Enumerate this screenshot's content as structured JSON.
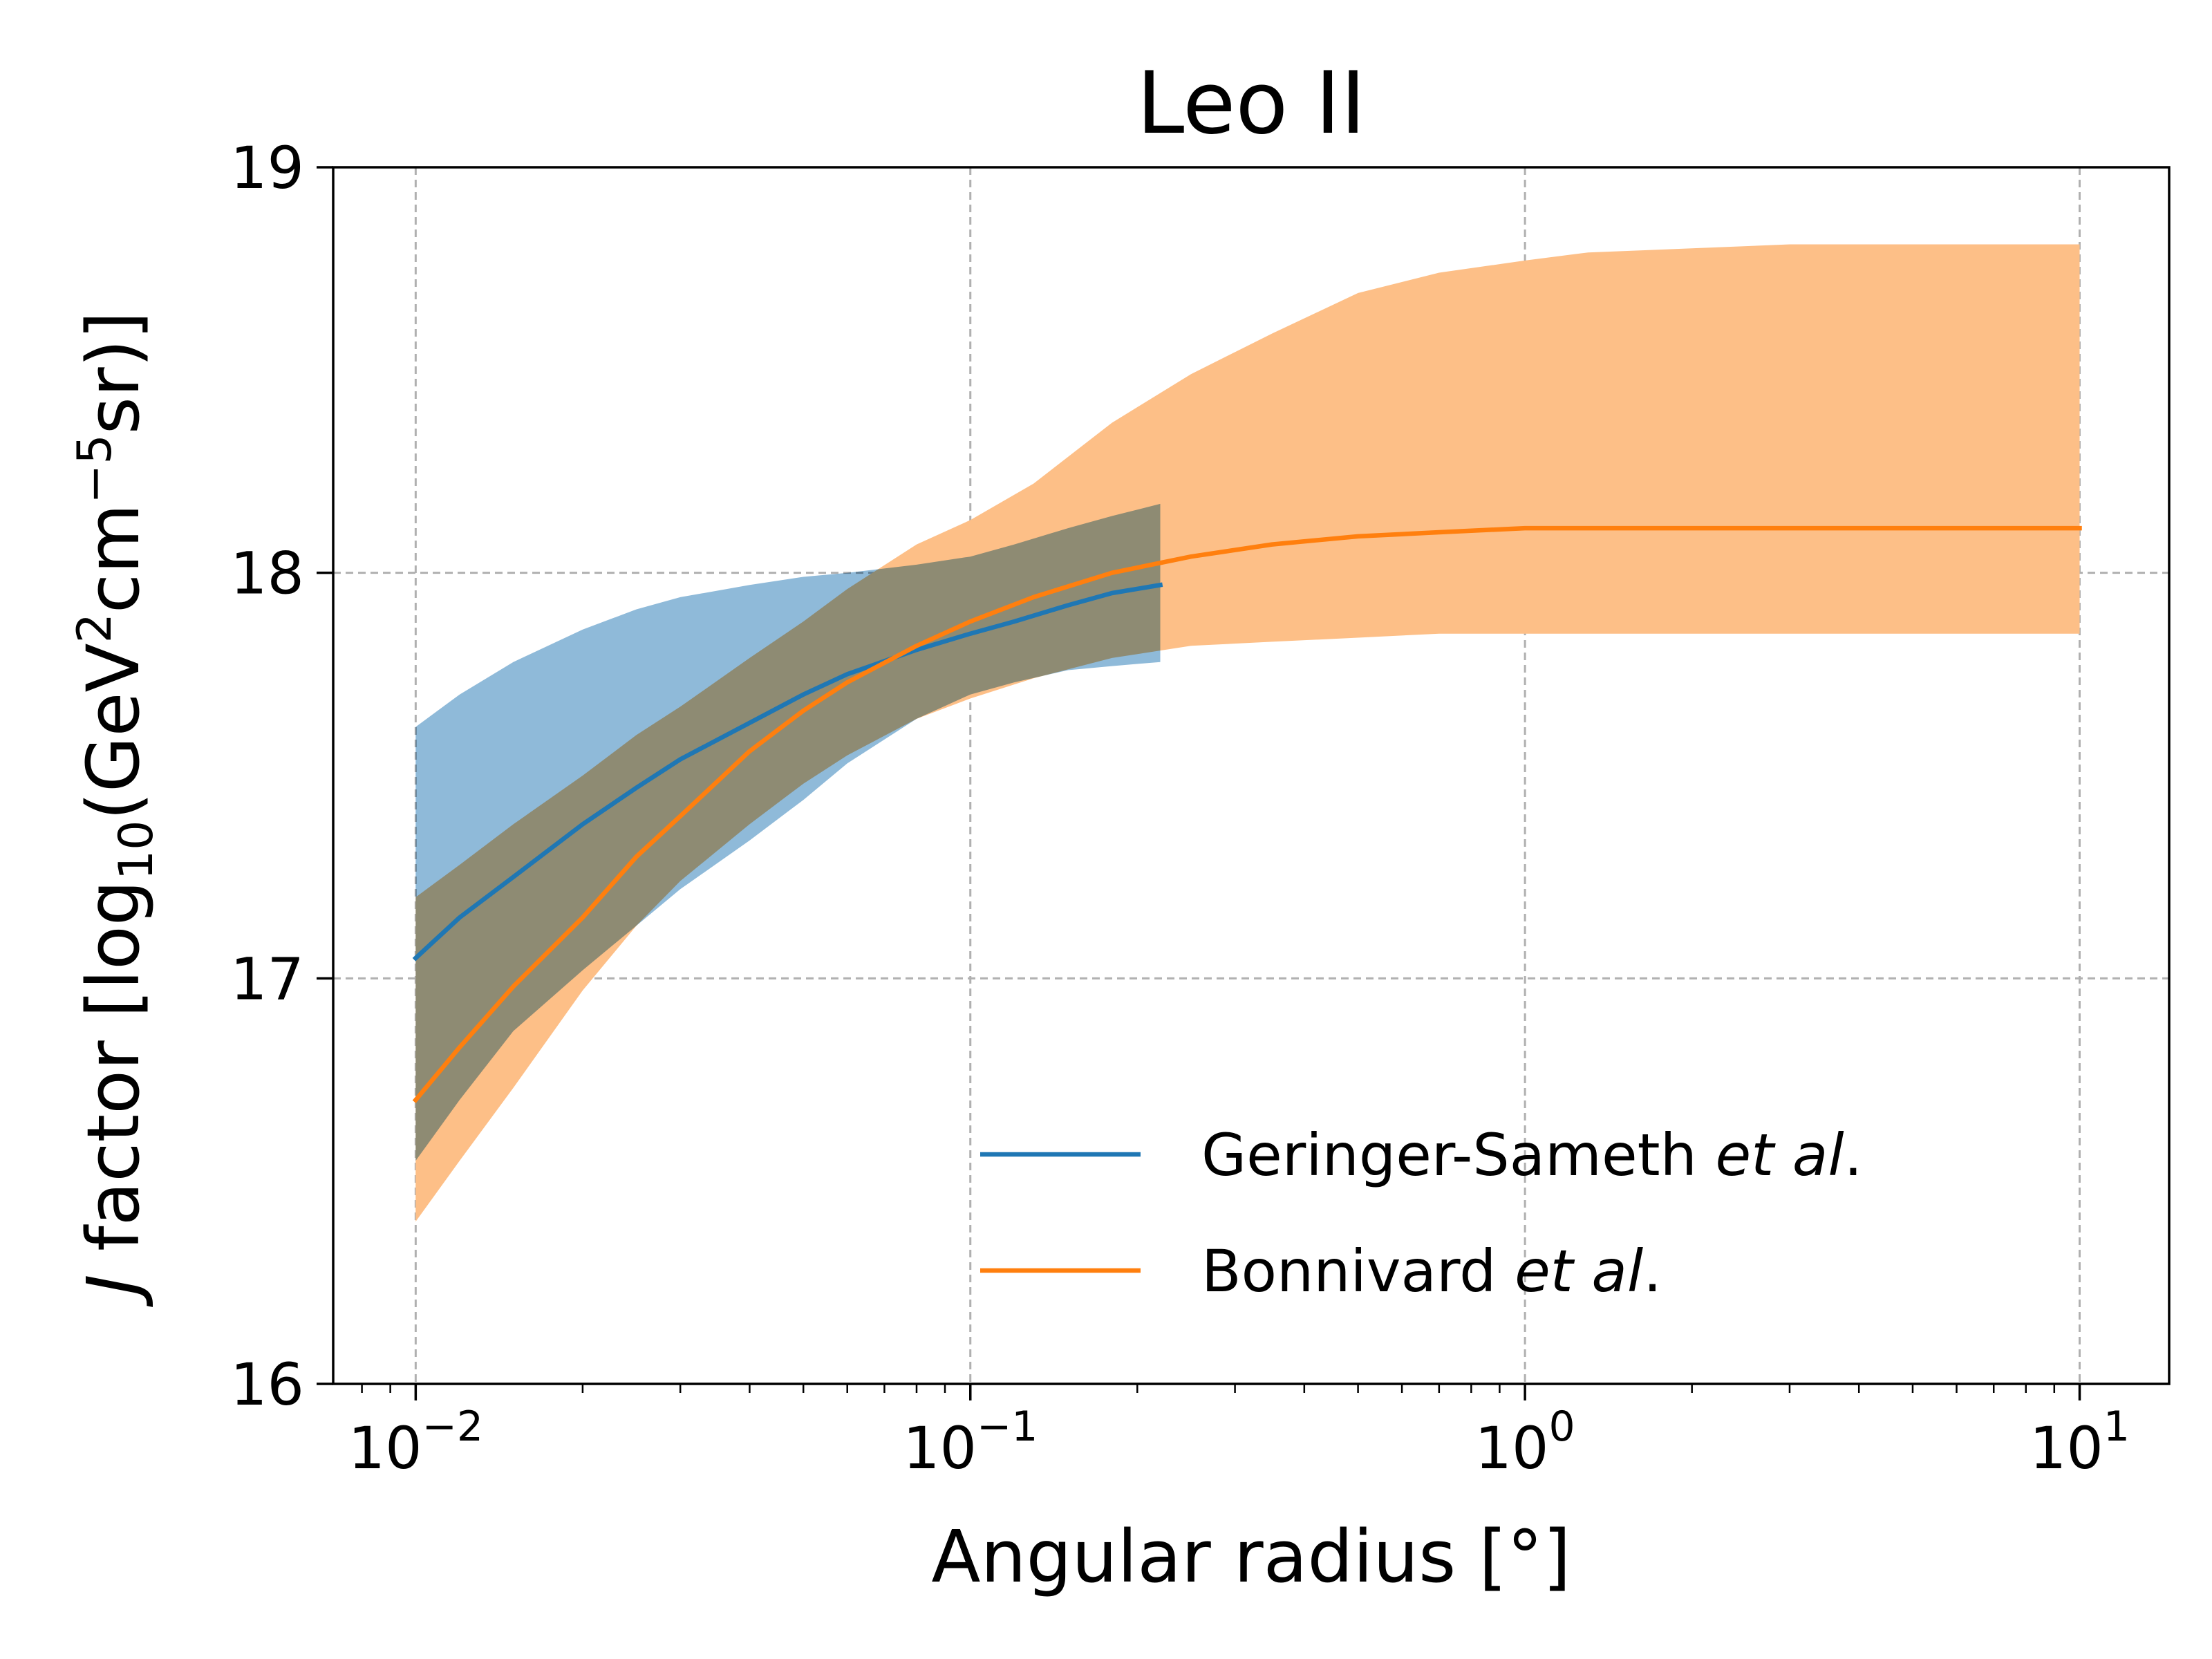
{
  "chart_data": {
    "type": "line",
    "title": "Leo II",
    "xlabel": "Angular radius [°]",
    "ylabel": {
      "italic": "J",
      "main": " factor [log",
      "sub": "10",
      "unit1": "(GeV",
      "sup1": "2",
      "unit2": "cm",
      "sup2": "−5",
      "unit3": "sr)]"
    },
    "x_scale": "log",
    "xlim": [
      0.0071,
      14.5
    ],
    "ylim": [
      16,
      19
    ],
    "grid": true,
    "x_ticks": [
      {
        "value": 0.01,
        "base": "10",
        "exp": "−2"
      },
      {
        "value": 0.1,
        "base": "10",
        "exp": "−1"
      },
      {
        "value": 1,
        "base": "10",
        "exp": "0"
      },
      {
        "value": 10,
        "base": "10",
        "exp": "1"
      }
    ],
    "y_ticks": [
      {
        "value": 16,
        "label": "16"
      },
      {
        "value": 17,
        "label": "17"
      },
      {
        "value": 18,
        "label": "18"
      },
      {
        "value": 19,
        "label": "19"
      }
    ],
    "legend_position": "lower-right",
    "series": [
      {
        "name": "Geringer-Sameth",
        "name_italic": "et al",
        "name_suffix": ".",
        "color": "#1f77b4",
        "band_color": "#8fbad9",
        "points": [
          {
            "x": 0.01,
            "y": 17.05,
            "lo": 16.55,
            "hi": 17.62
          },
          {
            "x": 0.012,
            "y": 17.15,
            "lo": 16.7,
            "hi": 17.7
          },
          {
            "x": 0.015,
            "y": 17.25,
            "lo": 16.87,
            "hi": 17.78
          },
          {
            "x": 0.02,
            "y": 17.38,
            "lo": 17.02,
            "hi": 17.86
          },
          {
            "x": 0.025,
            "y": 17.47,
            "lo": 17.13,
            "hi": 17.91
          },
          {
            "x": 0.03,
            "y": 17.54,
            "lo": 17.22,
            "hi": 17.94
          },
          {
            "x": 0.04,
            "y": 17.63,
            "lo": 17.34,
            "hi": 17.97
          },
          {
            "x": 0.05,
            "y": 17.7,
            "lo": 17.44,
            "hi": 17.99
          },
          {
            "x": 0.06,
            "y": 17.75,
            "lo": 17.53,
            "hi": 18.0
          },
          {
            "x": 0.08,
            "y": 17.81,
            "lo": 17.64,
            "hi": 18.02
          },
          {
            "x": 0.1,
            "y": 17.85,
            "lo": 17.7,
            "hi": 18.04
          },
          {
            "x": 0.12,
            "y": 17.88,
            "lo": 17.73,
            "hi": 18.07
          },
          {
            "x": 0.15,
            "y": 17.92,
            "lo": 17.76,
            "hi": 18.11
          },
          {
            "x": 0.18,
            "y": 17.95,
            "lo": 17.77,
            "hi": 18.14
          },
          {
            "x": 0.22,
            "y": 17.97,
            "lo": 17.78,
            "hi": 18.17
          }
        ]
      },
      {
        "name": "Bonnivard",
        "name_italic": "et al",
        "name_suffix": ".",
        "color": "#ff7f0e",
        "band_color": "#fdbf87",
        "points": [
          {
            "x": 0.01,
            "y": 16.7,
            "lo": 16.4,
            "hi": 17.2
          },
          {
            "x": 0.012,
            "y": 16.83,
            "lo": 16.55,
            "hi": 17.28
          },
          {
            "x": 0.015,
            "y": 16.98,
            "lo": 16.73,
            "hi": 17.38
          },
          {
            "x": 0.02,
            "y": 17.15,
            "lo": 16.97,
            "hi": 17.5
          },
          {
            "x": 0.025,
            "y": 17.3,
            "lo": 17.13,
            "hi": 17.6
          },
          {
            "x": 0.03,
            "y": 17.4,
            "lo": 17.24,
            "hi": 17.67
          },
          {
            "x": 0.04,
            "y": 17.56,
            "lo": 17.38,
            "hi": 17.79
          },
          {
            "x": 0.05,
            "y": 17.66,
            "lo": 17.48,
            "hi": 17.88
          },
          {
            "x": 0.06,
            "y": 17.73,
            "lo": 17.55,
            "hi": 17.96
          },
          {
            "x": 0.08,
            "y": 17.82,
            "lo": 17.64,
            "hi": 18.07
          },
          {
            "x": 0.1,
            "y": 17.88,
            "lo": 17.69,
            "hi": 18.13
          },
          {
            "x": 0.13,
            "y": 17.94,
            "lo": 17.74,
            "hi": 18.22
          },
          {
            "x": 0.18,
            "y": 18.0,
            "lo": 17.79,
            "hi": 18.37
          },
          {
            "x": 0.25,
            "y": 18.04,
            "lo": 17.82,
            "hi": 18.49
          },
          {
            "x": 0.35,
            "y": 18.07,
            "lo": 17.83,
            "hi": 18.59
          },
          {
            "x": 0.5,
            "y": 18.09,
            "lo": 17.84,
            "hi": 18.69
          },
          {
            "x": 0.7,
            "y": 18.1,
            "lo": 17.85,
            "hi": 18.74
          },
          {
            "x": 1.0,
            "y": 18.11,
            "lo": 17.85,
            "hi": 18.77
          },
          {
            "x": 1.3,
            "y": 18.11,
            "lo": 17.85,
            "hi": 18.79
          },
          {
            "x": 2.0,
            "y": 18.11,
            "lo": 17.85,
            "hi": 18.8
          },
          {
            "x": 3.0,
            "y": 18.11,
            "lo": 17.85,
            "hi": 18.81
          },
          {
            "x": 5.0,
            "y": 18.11,
            "lo": 17.85,
            "hi": 18.81
          },
          {
            "x": 10.0,
            "y": 18.11,
            "lo": 17.85,
            "hi": 18.81
          }
        ]
      }
    ]
  }
}
